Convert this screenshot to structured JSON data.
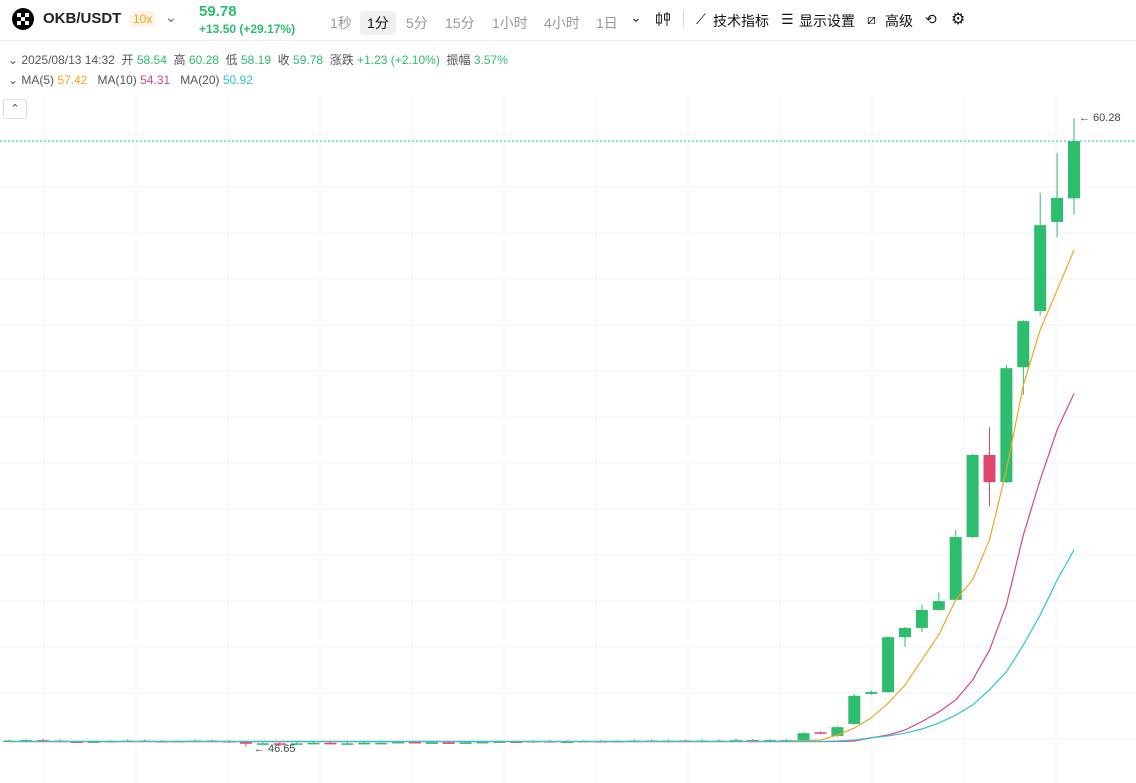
{
  "header": {
    "pair": "OKB/USDT",
    "leverage": "10x",
    "change": "+13.50 (+29.17%)"
  },
  "toolbar": {
    "intervals": [
      "1秒",
      "1分",
      "5分",
      "15分",
      "1小时",
      "4小时",
      "1日"
    ],
    "tools": [
      "技术指标",
      "显示设置",
      "高级"
    ]
  },
  "info": {
    "datetime": "2025/08/13 14:32",
    "open_label": "开",
    "high_label": "高",
    "low_label": "低",
    "close_label": "收",
    "change_label": "涨跌",
    "change": "+1.23 (+2.10%)",
    "amplitude_label": "振幅",
    "amplitude": "3.57%"
  },
  "chart_data": {
    "type": "candlestick",
    "up_color": "#2dbd6e",
    "down_color": "#e0466b",
    "ylim": [
      45.87,
      60.78
    ],
    "annotations": [
      "← 60.28",
      "← 46.65"
    ],
    "open": [
      46.78,
      46.79,
      46.8,
      46.79,
      46.77,
      46.76,
      46.77,
      46.78,
      46.79,
      46.78,
      46.77,
      46.78,
      46.79,
      46.78,
      46.76,
      46.72,
      46.73,
      46.72,
      46.73,
      46.74,
      46.73,
      46.73,
      46.74,
      46.74,
      46.76,
      46.75,
      46.75,
      46.74,
      46.75,
      46.76,
      46.77,
      46.76,
      46.78,
      46.77,
      46.77,
      46.78,
      46.77,
      46.78,
      46.79,
      46.78,
      46.79,
      46.78,
      46.79,
      46.79,
      46.8,
      46.79,
      46.8,
      46.8,
      46.97,
      46.89,
      47.15,
      47.8,
      47.84,
      49.03,
      49.23,
      49.62,
      49.84,
      51.2,
      52.98,
      52.39,
      54.88,
      56.1,
      58.03,
      58.54
    ],
    "high": [
      46.81,
      46.82,
      46.82,
      46.81,
      46.79,
      46.79,
      46.8,
      46.81,
      46.81,
      46.8,
      46.8,
      46.81,
      46.81,
      46.8,
      46.77,
      46.75,
      46.75,
      46.75,
      46.76,
      46.76,
      46.75,
      46.76,
      46.76,
      46.78,
      46.78,
      46.77,
      46.77,
      46.77,
      46.78,
      46.79,
      46.79,
      46.8,
      46.8,
      46.79,
      46.8,
      46.8,
      46.8,
      46.81,
      46.81,
      46.81,
      46.81,
      46.81,
      46.81,
      46.82,
      46.82,
      46.82,
      46.82,
      46.97,
      46.99,
      47.1,
      47.8,
      47.88,
      49.05,
      49.25,
      49.73,
      50.0,
      51.35,
      53.0,
      53.58,
      54.93,
      55.9,
      58.66,
      59.52,
      60.28
    ],
    "low": [
      46.76,
      46.77,
      46.77,
      46.75,
      46.74,
      46.74,
      46.75,
      46.76,
      46.76,
      46.75,
      46.75,
      46.76,
      46.76,
      46.74,
      46.65,
      46.7,
      46.7,
      46.7,
      46.71,
      46.71,
      46.71,
      46.71,
      46.72,
      46.72,
      46.73,
      46.73,
      46.72,
      46.72,
      46.73,
      46.74,
      46.74,
      46.74,
      46.75,
      46.75,
      46.75,
      46.75,
      46.75,
      46.76,
      46.76,
      46.76,
      46.76,
      46.76,
      46.77,
      46.77,
      46.77,
      46.77,
      46.78,
      46.78,
      46.93,
      46.87,
      47.13,
      47.78,
      47.82,
      48.82,
      49.14,
      49.6,
      49.82,
      51.18,
      51.87,
      52.37,
      54.28,
      56.0,
      57.7,
      58.19
    ],
    "close": [
      46.79,
      46.8,
      46.79,
      46.77,
      46.76,
      46.77,
      46.78,
      46.79,
      46.78,
      46.77,
      46.78,
      46.79,
      46.78,
      46.76,
      46.72,
      46.73,
      46.72,
      46.73,
      46.74,
      46.73,
      46.73,
      46.74,
      46.74,
      46.76,
      46.75,
      46.75,
      46.74,
      46.75,
      46.76,
      46.77,
      46.76,
      46.78,
      46.77,
      46.77,
      46.78,
      46.77,
      46.78,
      46.79,
      46.78,
      46.79,
      46.78,
      46.79,
      46.79,
      46.8,
      46.79,
      46.8,
      46.8,
      46.95,
      46.95,
      47.08,
      47.76,
      47.84,
      49.03,
      49.23,
      49.62,
      49.81,
      51.2,
      52.98,
      52.39,
      54.86,
      55.88,
      57.96,
      58.55,
      59.78
    ],
    "series": [
      {
        "name": "MA(5)",
        "color": "#f0a623",
        "values": [
          46.77,
          46.77,
          46.77,
          46.77,
          46.77,
          46.77,
          46.77,
          46.77,
          46.77,
          46.77,
          46.77,
          46.77,
          46.77,
          46.77,
          46.77,
          46.77,
          46.77,
          46.77,
          46.77,
          46.77,
          46.77,
          46.77,
          46.77,
          46.77,
          46.77,
          46.77,
          46.77,
          46.77,
          46.77,
          46.77,
          46.77,
          46.77,
          46.77,
          46.77,
          46.77,
          46.77,
          46.77,
          46.77,
          46.77,
          46.77,
          46.77,
          46.77,
          46.77,
          46.77,
          46.77,
          46.77,
          46.78,
          46.79,
          46.8,
          46.91,
          47.06,
          47.28,
          47.6,
          47.99,
          48.54,
          49.08,
          49.84,
          50.27,
          51.14,
          52.65,
          54.49,
          55.69,
          56.55,
          57.42
        ]
      },
      {
        "name": "MA(10)",
        "color": "#d9478a",
        "values": [
          46.77,
          46.77,
          46.77,
          46.77,
          46.77,
          46.77,
          46.77,
          46.77,
          46.77,
          46.77,
          46.77,
          46.77,
          46.77,
          46.77,
          46.77,
          46.77,
          46.77,
          46.77,
          46.77,
          46.77,
          46.77,
          46.77,
          46.77,
          46.77,
          46.77,
          46.77,
          46.77,
          46.77,
          46.77,
          46.77,
          46.77,
          46.77,
          46.77,
          46.77,
          46.77,
          46.77,
          46.77,
          46.77,
          46.77,
          46.77,
          46.77,
          46.77,
          46.77,
          46.77,
          46.77,
          46.77,
          46.77,
          46.77,
          46.77,
          46.77,
          46.78,
          46.85,
          46.91,
          47.02,
          47.2,
          47.41,
          47.67,
          48.1,
          48.75,
          49.73,
          51.24,
          52.44,
          53.52,
          54.31
        ]
      },
      {
        "name": "MA(20)",
        "color": "#2ec4d6",
        "values": [
          46.77,
          46.77,
          46.77,
          46.77,
          46.77,
          46.77,
          46.77,
          46.77,
          46.77,
          46.77,
          46.77,
          46.77,
          46.77,
          46.77,
          46.77,
          46.77,
          46.77,
          46.77,
          46.77,
          46.77,
          46.77,
          46.77,
          46.77,
          46.77,
          46.77,
          46.77,
          46.77,
          46.77,
          46.77,
          46.77,
          46.77,
          46.77,
          46.77,
          46.77,
          46.77,
          46.77,
          46.77,
          46.77,
          46.77,
          46.77,
          46.77,
          46.77,
          46.77,
          46.77,
          46.77,
          46.77,
          46.77,
          46.77,
          46.77,
          46.78,
          46.8,
          46.85,
          46.89,
          46.95,
          47.04,
          47.17,
          47.34,
          47.56,
          47.89,
          48.28,
          48.86,
          49.51,
          50.27,
          50.92
        ]
      }
    ]
  }
}
